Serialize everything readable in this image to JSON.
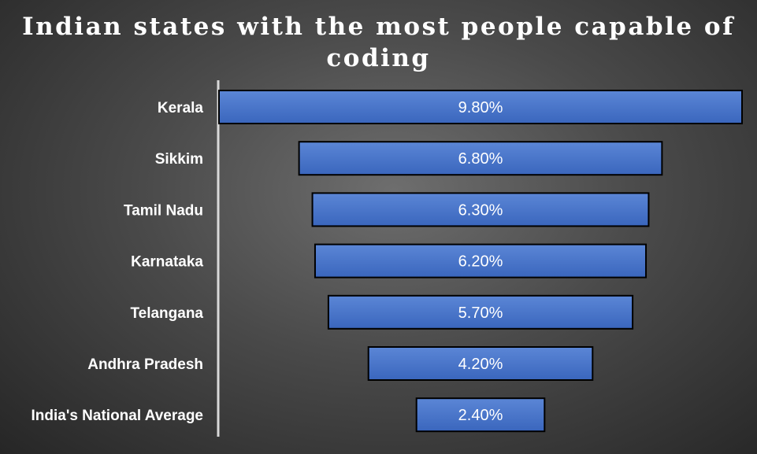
{
  "chart_data": {
    "type": "bar",
    "subtype": "funnel",
    "orientation": "horizontal",
    "title": "Indian states with the most people capable of coding",
    "categories": [
      "Kerala",
      "Sikkim",
      "Tamil Nadu",
      "Karnataka",
      "Telangana",
      "Andhra Pradesh",
      "India's National Average"
    ],
    "values": [
      9.8,
      6.8,
      6.3,
      6.2,
      5.7,
      4.2,
      2.4
    ],
    "value_labels": [
      "9.80%",
      "6.80%",
      "6.30%",
      "6.20%",
      "5.70%",
      "4.20%",
      "2.40%"
    ],
    "unit": "%",
    "xlabel": "",
    "ylabel": "",
    "legend": "none",
    "grid": false,
    "bar_color": "#4472C4",
    "bar_border_color": "#000000",
    "background_color": "#3a3a3a",
    "text_color": "#ffffff"
  }
}
